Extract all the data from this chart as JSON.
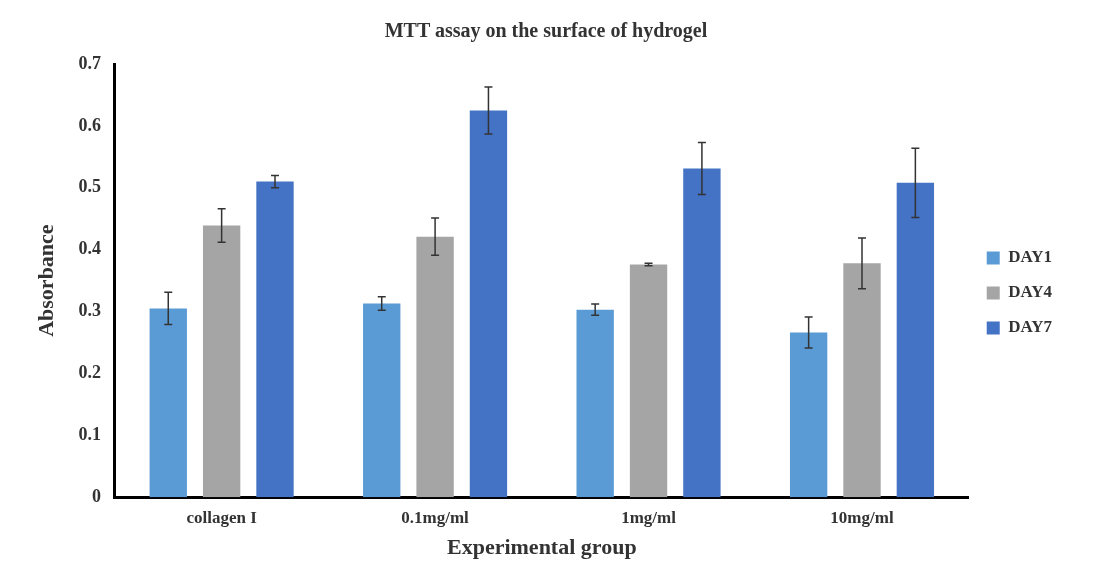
{
  "chart_data": {
    "type": "bar",
    "title": "MTT assay on the surface of hydrogel",
    "xlabel": "Experimental group",
    "ylabel": "Absorbance",
    "categories": [
      "collagen I",
      "0.1mg/ml",
      "1mg/ml",
      "10mg/ml"
    ],
    "series": [
      {
        "name": "DAY1",
        "color": "#5b9bd5",
        "values": [
          0.305,
          0.313,
          0.303,
          0.266
        ],
        "errors": [
          0.026,
          0.011,
          0.009,
          0.025
        ]
      },
      {
        "name": "DAY4",
        "color": "#a5a5a5",
        "values": [
          0.439,
          0.421,
          0.376,
          0.378
        ],
        "errors": [
          0.027,
          0.03,
          0.002,
          0.041
        ]
      },
      {
        "name": "DAY7",
        "color": "#4472c4",
        "values": [
          0.51,
          0.625,
          0.531,
          0.508
        ],
        "errors": [
          0.01,
          0.038,
          0.042,
          0.056
        ]
      }
    ],
    "ylim": [
      0,
      0.7
    ],
    "yticks": [
      0,
      0.1,
      0.2,
      0.3,
      0.4,
      0.5,
      0.6,
      0.7
    ],
    "grid": false,
    "legend": "right"
  }
}
